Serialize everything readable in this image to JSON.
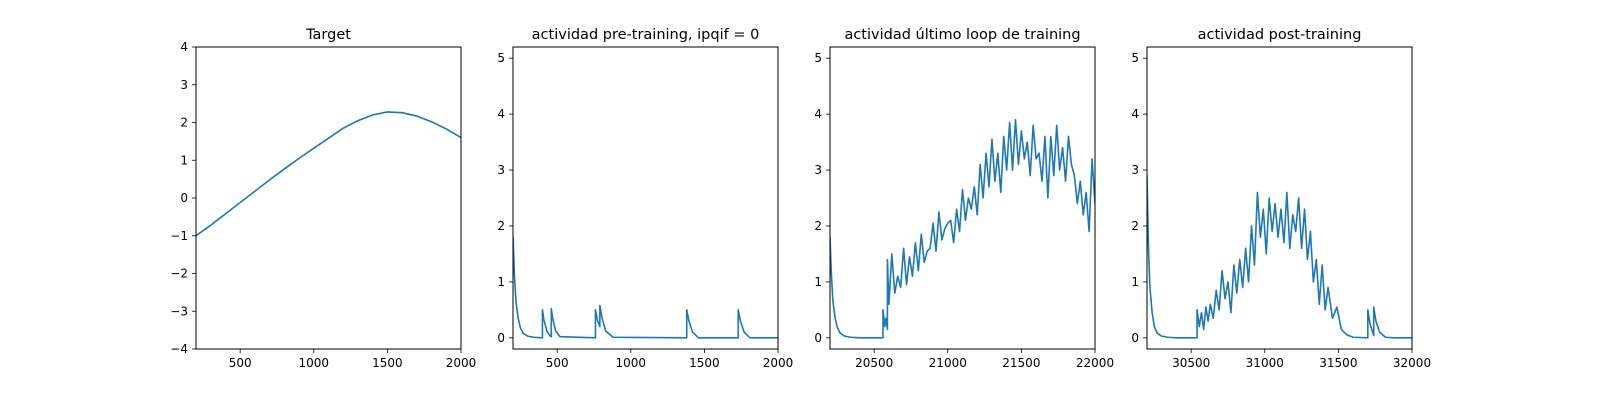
{
  "figure": {
    "background": "#ffffff",
    "line_color": "#1f77b4"
  },
  "chart_data": [
    {
      "type": "line",
      "title": "Target",
      "xlim": [
        200,
        2000
      ],
      "ylim": [
        -4,
        4
      ],
      "xticks": [
        500,
        1000,
        1500,
        2000
      ],
      "yticks": [
        -4,
        -3,
        -2,
        -1,
        0,
        1,
        2,
        3,
        4
      ],
      "series": [
        {
          "x": [
            200,
            300,
            400,
            500,
            600,
            700,
            800,
            900,
            1000,
            1100,
            1200,
            1300,
            1400,
            1500,
            1600,
            1700,
            1800,
            1900,
            2000
          ],
          "y": [
            -1.0,
            -0.72,
            -0.42,
            -0.12,
            0.18,
            0.48,
            0.77,
            1.05,
            1.32,
            1.58,
            1.85,
            2.05,
            2.2,
            2.28,
            2.26,
            2.17,
            2.02,
            1.83,
            1.6
          ]
        }
      ]
    },
    {
      "type": "line",
      "title": "actividad pre-training, ipqif = 0",
      "xlim": [
        200,
        2000
      ],
      "ylim": [
        -0.2,
        5.2
      ],
      "xticks": [
        500,
        1000,
        1500,
        2000
      ],
      "yticks": [
        0,
        1,
        2,
        3,
        4,
        5
      ],
      "series": [
        {
          "x": [
            200,
            210,
            220,
            235,
            250,
            270,
            300,
            340,
            400,
            400,
            410,
            430,
            450,
            460,
            460,
            470,
            490,
            520,
            760,
            760,
            775,
            790,
            790,
            805,
            830,
            880,
            1380,
            1380,
            1395,
            1420,
            1460,
            1730,
            1730,
            1745,
            1770,
            1810,
            2000
          ],
          "y": [
            1.8,
            1.1,
            0.65,
            0.35,
            0.18,
            0.08,
            0.03,
            0.01,
            0.0,
            0.5,
            0.32,
            0.12,
            0.04,
            0.02,
            0.52,
            0.34,
            0.12,
            0.02,
            0.0,
            0.5,
            0.3,
            0.2,
            0.58,
            0.35,
            0.12,
            0.01,
            0.0,
            0.5,
            0.3,
            0.1,
            0.0,
            0.0,
            0.5,
            0.3,
            0.1,
            0.0,
            0.0
          ]
        }
      ]
    },
    {
      "type": "line",
      "title": "actividad último loop de training",
      "xlim": [
        20200,
        22000
      ],
      "ylim": [
        -0.2,
        5.2
      ],
      "xticks": [
        20500,
        21000,
        21500,
        22000
      ],
      "yticks": [
        0,
        1,
        2,
        3,
        4,
        5
      ],
      "series": [
        {
          "x": [
            20200,
            20210,
            20220,
            20235,
            20250,
            20270,
            20300,
            20340,
            20400,
            20460,
            20560,
            20560,
            20572,
            20580,
            20590,
            20590,
            20600,
            20620,
            20640,
            20660,
            20680,
            20700,
            20720,
            20740,
            20760,
            20780,
            20800,
            20820,
            20840,
            20860,
            20880,
            20900,
            20920,
            20940,
            20960,
            20980,
            21000,
            21020,
            21040,
            21060,
            21080,
            21100,
            21120,
            21140,
            21160,
            21180,
            21200,
            21220,
            21240,
            21260,
            21280,
            21300,
            21320,
            21340,
            21360,
            21380,
            21400,
            21420,
            21440,
            21460,
            21480,
            21500,
            21520,
            21540,
            21560,
            21580,
            21600,
            21620,
            21640,
            21660,
            21680,
            21700,
            21720,
            21740,
            21760,
            21780,
            21800,
            21820,
            21840,
            21860,
            21880,
            21900,
            21920,
            21940,
            21960,
            21980,
            22000
          ],
          "y": [
            1.8,
            1.1,
            0.65,
            0.35,
            0.18,
            0.08,
            0.03,
            0.01,
            0.0,
            0.0,
            0.0,
            0.5,
            0.2,
            0.35,
            0.15,
            1.4,
            0.6,
            1.5,
            0.8,
            1.1,
            0.9,
            1.6,
            0.95,
            1.45,
            1.1,
            1.7,
            1.2,
            1.85,
            1.35,
            1.55,
            1.6,
            2.05,
            1.55,
            2.25,
            1.75,
            1.95,
            2.05,
            2.1,
            1.7,
            2.3,
            1.9,
            2.65,
            2.1,
            2.5,
            2.3,
            2.7,
            2.2,
            3.1,
            2.5,
            3.3,
            2.7,
            3.55,
            2.8,
            3.3,
            2.6,
            3.6,
            3.0,
            3.85,
            3.0,
            3.9,
            3.1,
            3.7,
            3.2,
            3.5,
            2.9,
            3.8,
            3.2,
            3.3,
            2.8,
            3.6,
            2.5,
            3.6,
            2.9,
            3.8,
            3.0,
            3.4,
            2.8,
            3.6,
            3.1,
            2.9,
            2.4,
            2.8,
            2.2,
            2.6,
            1.9,
            3.2,
            2.4
          ]
        }
      ]
    },
    {
      "type": "line",
      "title": "actividad post-training",
      "xlim": [
        30200,
        32000
      ],
      "ylim": [
        -0.2,
        5.2
      ],
      "xticks": [
        30500,
        31000,
        31500,
        32000
      ],
      "yticks": [
        0,
        1,
        2,
        3,
        4,
        5
      ],
      "series": [
        {
          "x": [
            30200,
            30210,
            30220,
            30235,
            30250,
            30270,
            30300,
            30340,
            30400,
            30460,
            30540,
            30540,
            30555,
            30570,
            30585,
            30600,
            30615,
            30630,
            30650,
            30670,
            30690,
            30710,
            30730,
            30750,
            30770,
            30790,
            30810,
            30830,
            30850,
            30870,
            30890,
            30910,
            30930,
            30950,
            30970,
            30990,
            31010,
            31030,
            31050,
            31070,
            31090,
            31110,
            31130,
            31150,
            31170,
            31190,
            31210,
            31230,
            31250,
            31270,
            31290,
            31310,
            31330,
            31350,
            31370,
            31390,
            31410,
            31430,
            31460,
            31490,
            31520,
            31560,
            31600,
            31700,
            31700,
            31715,
            31735,
            31740,
            31740,
            31755,
            31780,
            31820,
            31880,
            32000
          ],
          "y": [
            2.9,
            1.6,
            0.9,
            0.45,
            0.2,
            0.08,
            0.03,
            0.01,
            0.0,
            0.0,
            0.0,
            0.5,
            0.2,
            0.45,
            0.15,
            0.55,
            0.3,
            0.6,
            0.35,
            0.85,
            0.5,
            1.2,
            0.7,
            1.0,
            0.45,
            1.3,
            0.8,
            1.4,
            0.9,
            1.6,
            1.0,
            2.0,
            1.3,
            2.6,
            1.8,
            2.3,
            1.5,
            2.5,
            1.9,
            2.4,
            1.8,
            2.3,
            1.7,
            2.6,
            1.6,
            2.2,
            1.9,
            2.5,
            1.6,
            2.3,
            1.4,
            1.9,
            1.0,
            1.4,
            0.6,
            1.3,
            0.5,
            0.9,
            0.35,
            0.55,
            0.15,
            0.05,
            0.01,
            0.0,
            0.5,
            0.25,
            0.08,
            0.04,
            0.55,
            0.3,
            0.1,
            0.01,
            0.0,
            0.0
          ]
        }
      ]
    }
  ]
}
